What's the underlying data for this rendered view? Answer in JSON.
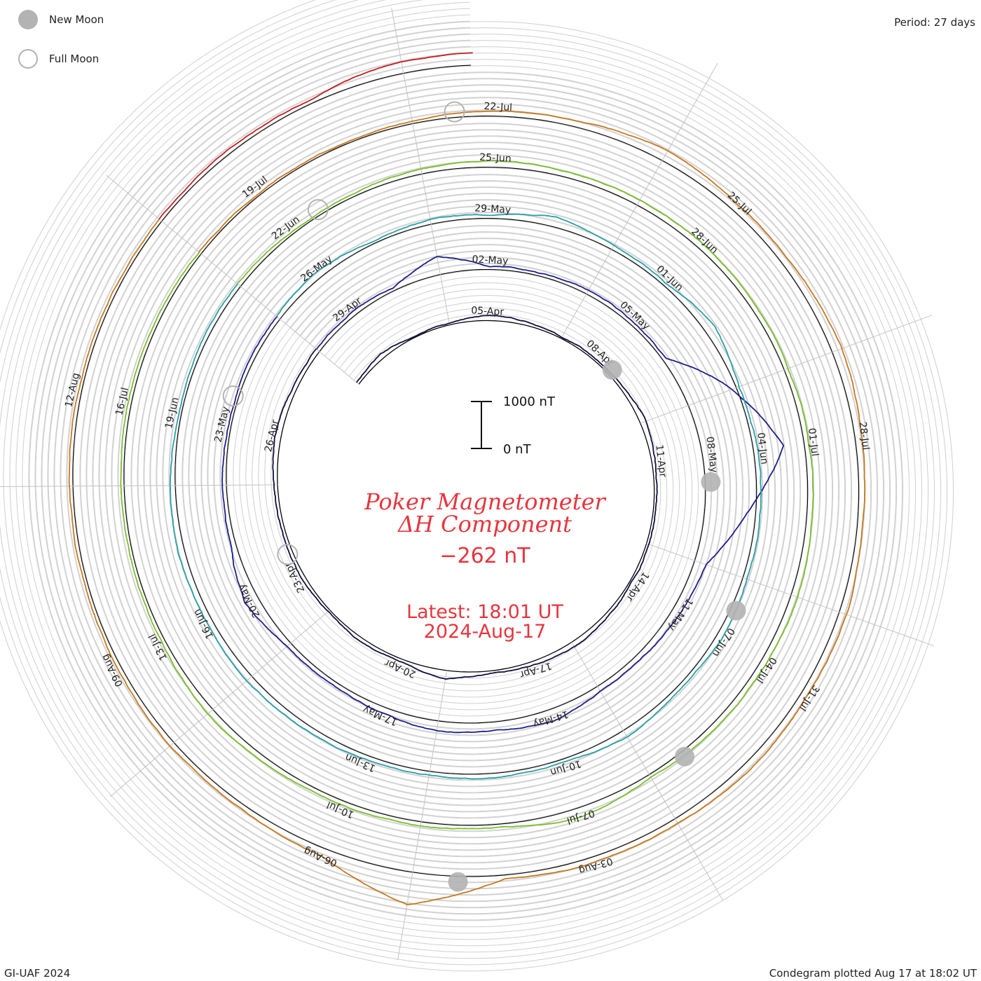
{
  "legend": {
    "new_moon": {
      "label": "New Moon",
      "color": "#b3b3b3"
    },
    "full_moon": {
      "label": "Full Moon",
      "color": "#b3b3b3"
    }
  },
  "period_label": "Period: 27 days",
  "footer": {
    "left": "GI-UAF 2024",
    "right": "Condegram plotted Aug 17 at 18:02 UT"
  },
  "center": {
    "title_line1": "Poker Magnetometer",
    "title_line2": "ΔH Component",
    "current_value": "−262 nT",
    "latest_time": "Latest: 18:01 UT",
    "latest_date": "2024-Aug-17"
  },
  "scale_bar": {
    "top_label": "1000 nT",
    "bottom_label": "0 nT"
  },
  "chart_data": {
    "type": "line",
    "title": "Poker Magnetometer ΔH Component",
    "ylabel": "nT",
    "period_days": 27,
    "scale_bar_nT": [
      0,
      1000
    ],
    "current_value_nT": -262,
    "series": [
      {
        "name": "",
        "color": "#101040",
        "start": "2024-04-01",
        "end": "2024-04-27",
        "date_labels": [
          "05-Apr",
          "08-Apr",
          "11-Apr",
          "14-Apr",
          "17-Apr",
          "20-Apr",
          "23-Apr",
          "26-Apr"
        ],
        "delta_h_nT": [
          -60,
          -110,
          -20,
          -30,
          -120,
          -80,
          -30,
          -40,
          -60,
          -140,
          -80,
          -40,
          -60,
          -50,
          -80,
          -100,
          -70,
          -50,
          -180,
          -60,
          -70,
          -40,
          -90,
          -60,
          -90,
          -140,
          -90
        ]
      },
      {
        "name": "",
        "color": "#1e1e8c",
        "start": "2024-04-28",
        "end": "2024-05-24",
        "date_labels": [
          "29-Apr",
          "02-May",
          "05-May",
          "08-May",
          "11-May",
          "14-May",
          "17-May",
          "20-May",
          "23-May"
        ],
        "delta_h_nT": [
          -80,
          -100,
          -50,
          -380,
          -60,
          -50,
          -90,
          -80,
          -60,
          -1000,
          -1750,
          -900,
          -250,
          -180,
          -120,
          -110,
          -260,
          -180,
          -220,
          -120,
          -80,
          -100,
          -300,
          -90,
          -70,
          -60,
          -80
        ]
      },
      {
        "name": "",
        "color": "#2a9fa8",
        "start": "2024-05-25",
        "end": "2024-06-20",
        "date_labels": [
          "26-May",
          "29-May",
          "01-Jun",
          "04-Jun",
          "07-Jun",
          "10-Jun",
          "13-Jun",
          "16-Jun",
          "19-Jun"
        ],
        "delta_h_nT": [
          -90,
          -150,
          -60,
          -100,
          -80,
          -210,
          -90,
          -60,
          -220,
          -50,
          -100,
          -100,
          -90,
          -120,
          -80,
          -160,
          -60,
          -80,
          -90,
          -100,
          -120,
          -150,
          -110,
          -140,
          -100,
          -60,
          -70
        ]
      },
      {
        "name": "",
        "color": "#7bbd2c",
        "start": "2024-06-21",
        "end": "2024-07-17",
        "date_labels": [
          "22-Jun",
          "25-Jun",
          "28-Jun",
          "01-Jul",
          "04-Jul",
          "07-Jul",
          "10-Jul",
          "13-Jul",
          "16-Jul"
        ],
        "delta_h_nT": [
          -90,
          -60,
          -50,
          -110,
          -150,
          -110,
          -120,
          -130,
          -110,
          -90,
          -100,
          -130,
          -150,
          -120,
          -120,
          -70,
          -220,
          -80,
          -90,
          -80,
          -110,
          -150,
          -90,
          -60,
          -70,
          -80,
          -60
        ]
      },
      {
        "name": "",
        "color": "#c8781e",
        "start": "2024-07-18",
        "end": "2024-08-13",
        "date_labels": [
          "19-Jul",
          "22-Jul",
          "25-Jul",
          "28-Jul",
          "31-Jul",
          "03-Aug",
          "06-Aug",
          "09-Aug",
          "12-Aug"
        ],
        "delta_h_nT": [
          -60,
          -50,
          -40,
          -60,
          -120,
          -130,
          -230,
          -150,
          -170,
          -220,
          -140,
          -120,
          -160,
          -140,
          -160,
          -100,
          -120,
          -90,
          -700,
          -160,
          -90,
          -110,
          -80,
          -60,
          -80,
          -70,
          -60
        ]
      },
      {
        "name": "",
        "color": "#c41e1e",
        "start": "2024-08-14",
        "end": "2024-08-17",
        "date_labels": [],
        "delta_h_nT": [
          -70,
          -90,
          -80,
          -262
        ]
      }
    ],
    "new_moon_dates": [
      "2024-04-08",
      "2024-05-08",
      "2024-06-06",
      "2024-07-05",
      "2024-08-04"
    ],
    "full_moon_dates": [
      "2024-04-23",
      "2024-05-23",
      "2024-06-22",
      "2024-07-21"
    ]
  }
}
